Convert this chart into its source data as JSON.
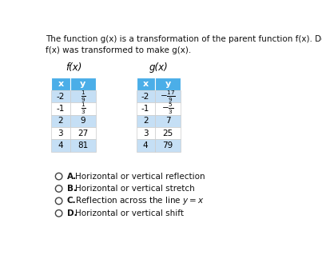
{
  "title_text": "The function g(x) is a transformation of the parent function f(x). Decide how\nf(x) was transformed to make g(x).",
  "fx_label": "f(x)",
  "gx_label": "g(x)",
  "fx_headers": [
    "x",
    "y"
  ],
  "gx_headers": [
    "x",
    "y"
  ],
  "fx_data": [
    [
      "-2",
      "\\frac{1}{9}"
    ],
    [
      "-1",
      "\\frac{1}{3}"
    ],
    [
      "2",
      "9"
    ],
    [
      "3",
      "27"
    ],
    [
      "4",
      "81"
    ]
  ],
  "gx_data": [
    [
      "-2",
      "-\\frac{17}{9}"
    ],
    [
      "-1",
      "-\\frac{5}{3}"
    ],
    [
      "2",
      "7"
    ],
    [
      "3",
      "25"
    ],
    [
      "4",
      "79"
    ]
  ],
  "header_bg": "#4baee8",
  "row_bg_even": "#c5dff5",
  "row_bg_odd": "#ffffff",
  "options_bold": [
    "A.",
    "B.",
    "C.",
    "D."
  ],
  "options_text": [
    "Horizontal or vertical reflection",
    "Horizontal or vertical stretch",
    "Reflection across the line $y = x$",
    "Horizontal or vertical shift"
  ],
  "bg_color": "#ffffff",
  "text_color": "#111111",
  "font_size_title": 7.5,
  "font_size_table": 7.5,
  "font_size_label": 8.5,
  "font_size_options": 7.5
}
